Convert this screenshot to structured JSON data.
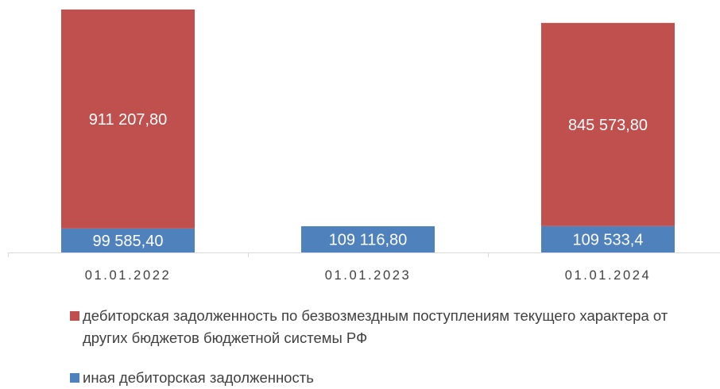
{
  "chart_data": {
    "type": "bar",
    "stacked": true,
    "categories": [
      "01.01.2022",
      "01.01.2023",
      "01.01.2024"
    ],
    "series": [
      {
        "name": "иная дебиторская задолженность",
        "values": [
          99585.4,
          109116.8,
          109533.4
        ],
        "labels": [
          "99 585,40",
          "109 116,80",
          "109 533,4"
        ],
        "color": "#4f81bd"
      },
      {
        "name": "дебиторская задолженность по безвозмездным поступлениям текущего характера от других бюджетов бюджетной системы РФ",
        "values": [
          911207.8,
          0,
          845573.8
        ],
        "labels": [
          "911 207,80",
          "",
          "845 573,80"
        ],
        "color": "#c0504d"
      }
    ],
    "ylim": [
      0,
      1010793.2
    ],
    "grid": false,
    "y_axis_visible": false,
    "legend_position": "bottom",
    "label_color": "#ffffff",
    "axis_color": "#d9d9d9",
    "tick_label_color": "#404040"
  },
  "legend": {
    "items": [
      {
        "label": "дебиторская задолженность по безвозмездным поступлениям текущего характера от других бюджетов бюджетной системы РФ",
        "color": "#c0504d"
      },
      {
        "label": "иная дебиторская задолженность",
        "color": "#4f81bd"
      }
    ]
  }
}
